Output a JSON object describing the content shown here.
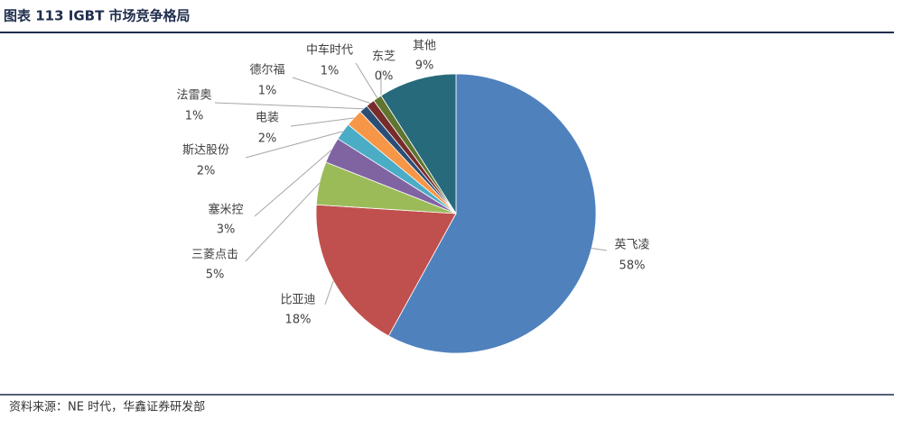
{
  "chart_data": {
    "type": "pie",
    "title": "图表 113 IGBT 市场竞争格局",
    "categories": [
      "英飞凌",
      "比亚迪",
      "三菱点击",
      "塞米控",
      "斯达股份",
      "电装",
      "法雷奥",
      "德尔福",
      "中车时代",
      "东芝",
      "其他"
    ],
    "values": [
      58,
      18,
      5,
      3,
      2,
      2,
      1,
      1,
      1,
      0,
      9
    ],
    "value_labels": [
      "58%",
      "18%",
      "5%",
      "3%",
      "2%",
      "2%",
      "1%",
      "1%",
      "1%",
      "0%",
      "9%"
    ],
    "colors": [
      "#4f81bd",
      "#c0504d",
      "#9bbb59",
      "#8064a2",
      "#4bacc6",
      "#f79646",
      "#2c4d75",
      "#772c2a",
      "#5f7530",
      "#4d3b62",
      "#276a7c"
    ],
    "source": "资料来源：NE 时代，华鑫证券研发部"
  }
}
